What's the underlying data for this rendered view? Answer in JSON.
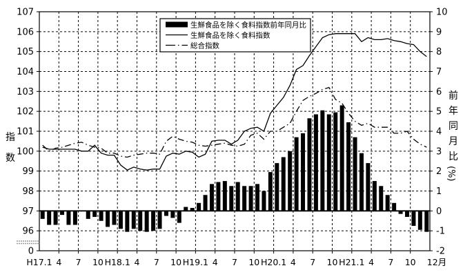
{
  "chart_data": {
    "type": "combo-bar-line",
    "title": "",
    "months_count": 60,
    "x_tick_labels": [
      "H17.1",
      "4",
      "7",
      "10",
      "H18.1",
      "4",
      "7",
      "10",
      "H19.1",
      "4",
      "7",
      "10",
      "H20.1",
      "4",
      "7",
      "10",
      "H21.1",
      "4",
      "7",
      "10"
    ],
    "x_end_label": "12月",
    "left_axis": {
      "label": "指数",
      "ticks": [
        107,
        106,
        105,
        104,
        103,
        102,
        101,
        100,
        99,
        98,
        97,
        96
      ],
      "break_label": "0",
      "has_axis_break": true
    },
    "right_axis": {
      "label": "前年同月比（％）",
      "label_main": "前年同月比",
      "label_unit": "(%)",
      "ticks": [
        10,
        9,
        8,
        7,
        6,
        5,
        4,
        3,
        2,
        1,
        0,
        -1,
        -2
      ]
    },
    "legend": [
      {
        "swatch": "bar",
        "label": "生鮮食品を除く食料指数前年同月比"
      },
      {
        "swatch": "solid",
        "label": "生鮮食品を除く食料指数"
      },
      {
        "swatch": "dashdot",
        "label": "総合指数"
      }
    ],
    "bars_yoy_pct": [
      -0.4,
      -0.7,
      -0.7,
      -0.2,
      -0.7,
      -0.7,
      0.0,
      -0.4,
      -0.3,
      -0.5,
      -0.8,
      -0.7,
      -0.9,
      -1.05,
      -0.9,
      -1.0,
      -1.05,
      -1.0,
      -0.9,
      -0.25,
      -0.35,
      -0.6,
      0.2,
      0.15,
      0.4,
      0.8,
      1.35,
      1.45,
      1.5,
      1.25,
      1.45,
      1.25,
      1.25,
      1.35,
      1.0,
      1.95,
      2.4,
      2.7,
      3.0,
      3.7,
      3.9,
      4.65,
      4.85,
      5.05,
      4.85,
      4.95,
      5.3,
      4.45,
      3.7,
      2.9,
      2.4,
      1.5,
      1.25,
      0.8,
      0.4,
      -0.15,
      -0.3,
      -0.75,
      -0.95,
      -1.05
    ],
    "series": [
      {
        "name": "生鮮食品を除く食料指数",
        "style": "solid",
        "axis": "left",
        "values": [
          100.2,
          100.1,
          100.1,
          100.1,
          100.1,
          100.1,
          100.0,
          100.0,
          100.3,
          99.9,
          99.8,
          99.8,
          99.3,
          99.05,
          99.2,
          99.1,
          99.05,
          99.1,
          99.1,
          99.75,
          99.9,
          99.85,
          100.0,
          99.95,
          99.7,
          99.85,
          100.5,
          100.55,
          100.55,
          100.35,
          100.55,
          101.0,
          101.15,
          101.2,
          101.0,
          101.9,
          102.3,
          102.7,
          103.3,
          104.1,
          104.3,
          104.8,
          105.25,
          105.7,
          105.85,
          105.9,
          105.9,
          105.9,
          105.9,
          105.5,
          105.7,
          105.6,
          105.6,
          105.65,
          105.55,
          105.5,
          105.4,
          105.35,
          105.0,
          104.75
        ]
      },
      {
        "name": "総合指数",
        "style": "dashdot",
        "axis": "left",
        "values": [
          100.3,
          100.0,
          100.15,
          100.2,
          100.3,
          100.4,
          100.45,
          100.3,
          100.2,
          100.15,
          99.9,
          99.9,
          99.75,
          99.7,
          99.8,
          99.85,
          99.9,
          99.9,
          99.85,
          100.5,
          100.75,
          100.6,
          100.5,
          100.45,
          100.3,
          100.25,
          100.3,
          100.35,
          100.4,
          100.3,
          100.25,
          100.35,
          100.8,
          100.9,
          100.6,
          101.0,
          101.0,
          101.2,
          101.4,
          102.0,
          102.55,
          102.75,
          102.9,
          103.1,
          103.2,
          102.6,
          102.4,
          101.9,
          101.5,
          101.3,
          101.4,
          101.2,
          101.2,
          101.2,
          100.9,
          100.9,
          101.0,
          100.6,
          100.35,
          100.2
        ]
      }
    ],
    "axis_ranges": {
      "left_index_top": 107,
      "left_index_bottom": 96,
      "right_pct_top": 10,
      "right_pct_bottom": -2
    },
    "grid": "dashed, every index unit horizontally, every 3 months vertically",
    "legend_position": "top-center-right",
    "colors": {
      "bar": "#000000",
      "line_solid": "#000000",
      "line_dashdot": "#000000",
      "grid": "#000000",
      "background": "#ffffff",
      "break_mark": "#9a9a9a"
    }
  }
}
